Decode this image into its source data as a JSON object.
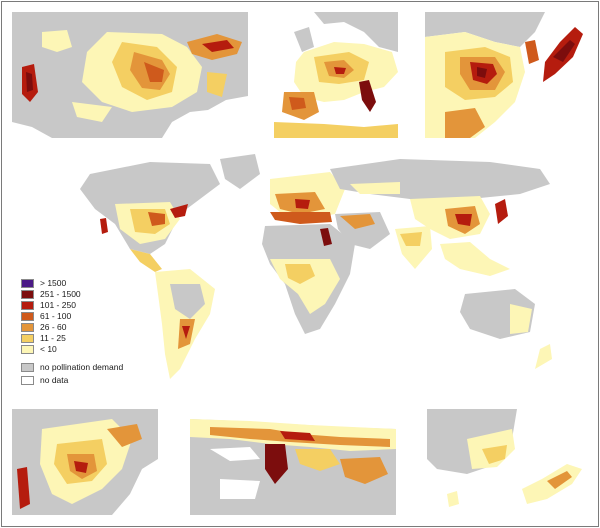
{
  "legend": {
    "classes": [
      {
        "label": "> 1500",
        "color": "#4b1a86"
      },
      {
        "label": "251 - 1500",
        "color": "#7c0d0d"
      },
      {
        "label": "101 - 250",
        "color": "#b51c0e"
      },
      {
        "label": "61 - 100",
        "color": "#cf5a1c"
      },
      {
        "label": "26 - 60",
        "color": "#e3953a"
      },
      {
        "label": "11 - 25",
        "color": "#f4cf62"
      },
      {
        "label": "< 10",
        "color": "#fdf6b6"
      }
    ],
    "no_demand": {
      "label": "no pollination demand",
      "color": "#c8c8c8"
    },
    "no_data": {
      "label": "no data",
      "color": "#ffffff"
    }
  },
  "colors": {
    "land_no_demand": "#c8c8c8",
    "low": "#fdf6b6",
    "mid_low": "#f4cf62",
    "mid": "#e3953a",
    "mid_high": "#cf5a1c",
    "high": "#b51c0e",
    "very_high": "#7c0d0d",
    "border": "#7a7a7a"
  },
  "panels": [
    "north-america-inset",
    "europe-inset",
    "east-asia-inset",
    "south-america-inset",
    "middle-east-inset",
    "australia-nz-inset"
  ]
}
